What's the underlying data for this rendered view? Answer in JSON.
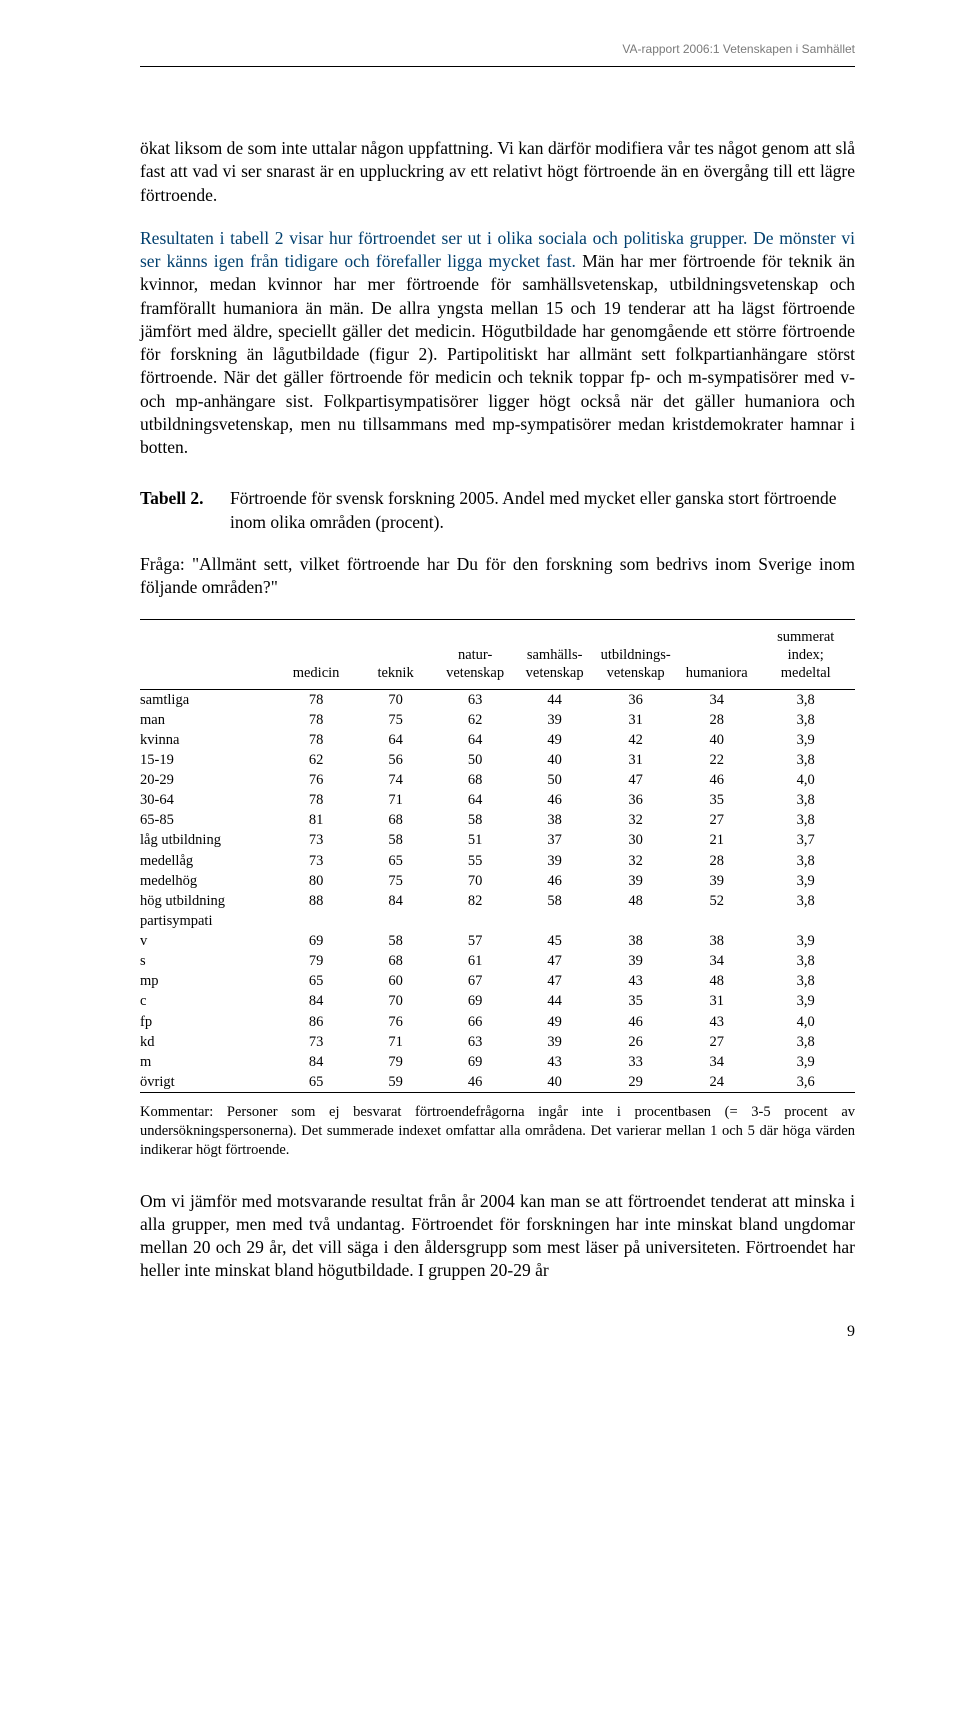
{
  "running_head": "VA-rapport 2006:1 Vetenskapen i Samhället",
  "para_intro_seg1": "ökat liksom de som inte uttalar någon uppfattning. Vi kan därför modifiera vår tes något genom att slå fast att vad vi ser snarast är en uppluckring av ett relativt högt förtroende än en övergång till ett lägre förtroende.",
  "blue_seg_a": "Resultaten i tabell 2 visar hur förtroendet ser ut i olika sociala och politiska grupper.",
  "blue_seg_b": " De mönster vi ser känns igen från tidigare och förefaller ligga mycket fast.",
  "para_main_rest": " Män har mer förtroende för teknik än kvinnor, medan kvinnor har mer förtroende för samhällsvetenskap, utbildningsvetenskap och framförallt humaniora än män. De allra yngsta mellan 15 och 19 tenderar att ha lägst förtroende jämfört med äldre, speciellt gäller det medicin. Högutbildade har genomgående ett större förtroende för forskning än lågutbildade (figur 2). Partipolitiskt har allmänt sett folkpartianhängare störst förtroende. När det gäller förtroende för medicin och teknik toppar fp- och m-sympatisörer med v- och mp-anhängare sist. Folkpartisympatisörer ligger högt också när det gäller humaniora och utbildningsvetenskap, men nu tillsammans med mp-sympatisörer medan kristdemokrater hamnar i botten.",
  "table_label": "Tabell 2.",
  "table_title": "Förtroende för svensk forskning 2005. Andel med mycket eller ganska stort förtroende inom olika områden (procent).",
  "table_question": "Fråga: \"Allmänt sett, vilket förtroende har Du för den forskning som bedrivs inom Sverige inom följande områden?\"",
  "columns": [
    "",
    "medicin",
    "teknik",
    "natur-\nvetenskap",
    "samhälls-\nvetenskap",
    "utbildnings-\nvetenskap",
    "humaniora",
    "summerat\nindex;\nmedeltal"
  ],
  "rows": [
    {
      "label": "samtliga",
      "cells": [
        "78",
        "70",
        "63",
        "44",
        "36",
        "34",
        "3,8"
      ],
      "section": true
    },
    {
      "label": "man",
      "cells": [
        "78",
        "75",
        "62",
        "39",
        "31",
        "28",
        "3,8"
      ],
      "gap": true
    },
    {
      "label": "kvinna",
      "cells": [
        "78",
        "64",
        "64",
        "49",
        "42",
        "40",
        "3,9"
      ]
    },
    {
      "label": "15-19",
      "cells": [
        "62",
        "56",
        "50",
        "40",
        "31",
        "22",
        "3,8"
      ],
      "gap": true
    },
    {
      "label": "20-29",
      "cells": [
        "76",
        "74",
        "68",
        "50",
        "47",
        "46",
        "4,0"
      ]
    },
    {
      "label": "30-64",
      "cells": [
        "78",
        "71",
        "64",
        "46",
        "36",
        "35",
        "3,8"
      ]
    },
    {
      "label": "65-85",
      "cells": [
        "81",
        "68",
        "58",
        "38",
        "32",
        "27",
        "3,8"
      ]
    },
    {
      "label": "låg utbildning",
      "cells": [
        "73",
        "58",
        "51",
        "37",
        "30",
        "21",
        "3,7"
      ],
      "gap": true
    },
    {
      "label": "medellåg",
      "cells": [
        "73",
        "65",
        "55",
        "39",
        "32",
        "28",
        "3,8"
      ]
    },
    {
      "label": "medelhög",
      "cells": [
        "80",
        "75",
        "70",
        "46",
        "39",
        "39",
        "3,9"
      ]
    },
    {
      "label": "hög utbildning",
      "cells": [
        "88",
        "84",
        "82",
        "58",
        "48",
        "52",
        "3,8"
      ]
    },
    {
      "label": "partisympati",
      "cells": [
        "",
        "",
        "",
        "",
        "",
        "",
        ""
      ],
      "gap": true
    },
    {
      "label": "v",
      "cells": [
        "69",
        "58",
        "57",
        "45",
        "38",
        "38",
        "3,9"
      ]
    },
    {
      "label": "s",
      "cells": [
        "79",
        "68",
        "61",
        "47",
        "39",
        "34",
        "3,8"
      ]
    },
    {
      "label": "mp",
      "cells": [
        "65",
        "60",
        "67",
        "47",
        "43",
        "48",
        "3,8"
      ]
    },
    {
      "label": "c",
      "cells": [
        "84",
        "70",
        "69",
        "44",
        "35",
        "31",
        "3,9"
      ]
    },
    {
      "label": "fp",
      "cells": [
        "86",
        "76",
        "66",
        "49",
        "46",
        "43",
        "4,0"
      ]
    },
    {
      "label": "kd",
      "cells": [
        "73",
        "71",
        "63",
        "39",
        "26",
        "27",
        "3,8"
      ]
    },
    {
      "label": "m",
      "cells": [
        "84",
        "79",
        "69",
        "43",
        "33",
        "34",
        "3,9"
      ]
    },
    {
      "label": "övrigt",
      "cells": [
        "65",
        "59",
        "46",
        "40",
        "29",
        "24",
        "3,6"
      ],
      "lastrow": true
    }
  ],
  "kommentar": "Kommentar: Personer som ej besvarat förtroendefrågorna ingår inte i procentbasen (= 3-5 procent av undersökningspersonerna). Det summerade indexet omfattar alla områdena. Det varierar mellan 1 och 5 där höga värden indikerar högt förtroende.",
  "para_out": "Om vi jämför med motsvarande resultat från år 2004 kan man se att förtroendet tenderat att minska i alla grupper, men med två undantag. Förtroendet för forskningen har inte minskat bland ungdomar mellan 20 och 29 år, det vill säga i den åldersgrupp som mest läser på universiteten. Förtroendet har heller inte minskat bland högutbildade. I gruppen 20-29 år",
  "page_number": "9"
}
